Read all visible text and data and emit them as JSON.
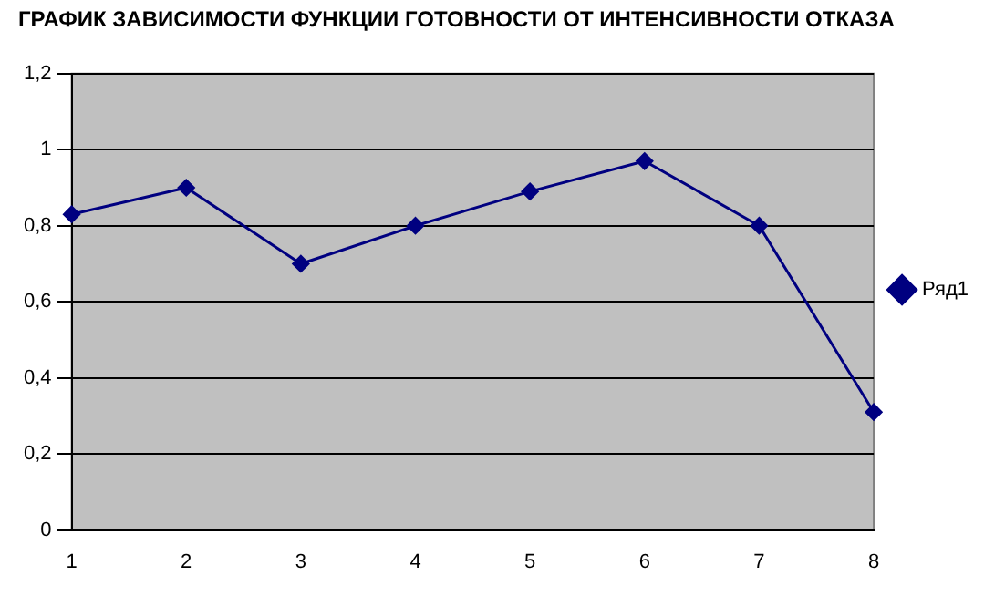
{
  "chart_data": {
    "type": "line",
    "title": "ГРАФИК ЗАВИСИМОСТИ ФУНКЦИИ ГОТОВНОСТИ ОТ ИНТЕНСИВНОСТИ ОТКАЗА",
    "categories": [
      "1",
      "2",
      "3",
      "4",
      "5",
      "6",
      "7",
      "8"
    ],
    "series": [
      {
        "name": "Ряд1",
        "color": "#000080",
        "values": [
          0.83,
          0.9,
          0.7,
          0.8,
          0.89,
          0.97,
          0.8,
          0.31
        ]
      }
    ],
    "ylim": [
      0,
      1.2
    ],
    "yticks": [
      0,
      {
        "value": 0.2,
        "label": "0,2"
      },
      {
        "value": 0.4,
        "label": "0,4"
      },
      {
        "value": 0.6,
        "label": "0,6"
      },
      {
        "value": 0.8,
        "label": "0,8"
      },
      1,
      {
        "value": 1.2,
        "label": "1,2"
      }
    ],
    "grid": "y",
    "legend": "right",
    "marker": "diamond",
    "line_style": "solid"
  }
}
